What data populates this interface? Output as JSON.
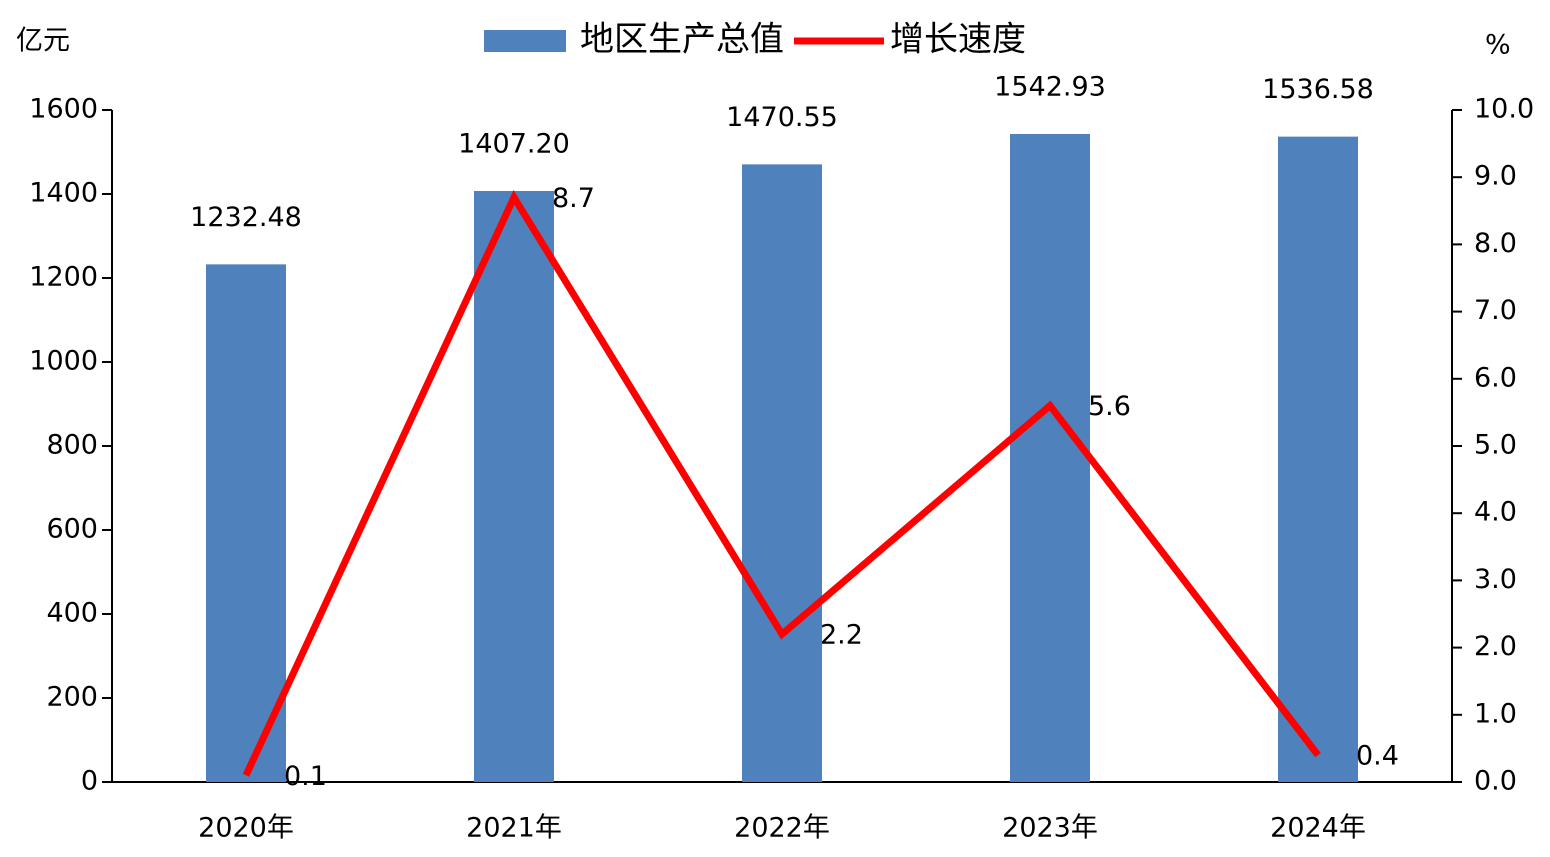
{
  "chart_data": {
    "type": "bar",
    "y_label": "亿元",
    "y2_label": "%",
    "categories": [
      "2020年",
      "2021年",
      "2022年",
      "2023年",
      "2024年"
    ],
    "series": [
      {
        "name": "地区生产总值",
        "type": "bar",
        "color": "#4f81bd",
        "values": [
          1232.48,
          1407.2,
          1470.55,
          1542.93,
          1536.58
        ],
        "value_labels": [
          "1232.48",
          "1407.20",
          "1470.55",
          "1542.93",
          "1536.58"
        ]
      },
      {
        "name": "增长速度",
        "type": "line",
        "axis": "y2",
        "color": "#ff0000",
        "values": [
          0.1,
          8.7,
          2.2,
          5.6,
          0.4
        ]
      }
    ],
    "ylim": [
      0,
      1600
    ],
    "yticks": [
      0,
      200,
      400,
      600,
      800,
      1000,
      1200,
      1400,
      1600
    ],
    "y2lim": [
      0,
      10
    ],
    "y2ticks": [
      {
        "value": 0,
        "label": "0.0"
      },
      {
        "value": 1,
        "label": "1.0"
      },
      {
        "value": 2,
        "label": "2.0"
      },
      {
        "value": 3,
        "label": "3.0"
      },
      {
        "value": 4,
        "label": "4.0"
      },
      {
        "value": 5,
        "label": "5.0"
      },
      {
        "value": 6,
        "label": "6.0"
      },
      {
        "value": 7,
        "label": "7.0"
      },
      {
        "value": 8,
        "label": "8.0"
      },
      {
        "value": 9,
        "label": "9.0"
      },
      {
        "value": 10,
        "label": "10.0"
      }
    ],
    "grid": false,
    "legend": "top"
  }
}
